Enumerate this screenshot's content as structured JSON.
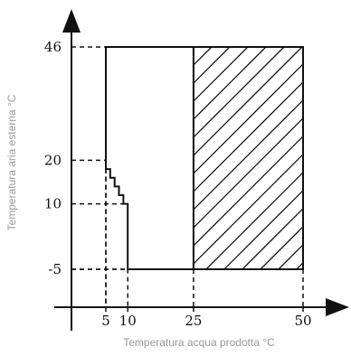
{
  "chart_data": {
    "type": "area",
    "xlabel": "Temperatura acqua prodotta °C",
    "ylabel": "Temperatura aria esterna °C",
    "xlim": [
      -8,
      60
    ],
    "ylim": [
      -13,
      55
    ],
    "x_ticks": [
      {
        "value": 5,
        "label": "5"
      },
      {
        "value": 10,
        "label": "10"
      },
      {
        "value": 25,
        "label": "25"
      },
      {
        "value": 50,
        "label": "50"
      }
    ],
    "y_ticks": [
      {
        "value": 46,
        "label": "46"
      },
      {
        "value": 20,
        "label": "20"
      },
      {
        "value": 10,
        "label": "10"
      },
      {
        "value": -5,
        "label": "-5"
      }
    ],
    "regions": [
      {
        "fill": "none",
        "outline": [
          [
            5,
            46
          ],
          [
            50,
            46
          ],
          [
            50,
            -5
          ],
          [
            10,
            -5
          ],
          [
            10,
            10
          ],
          [
            9,
            10
          ],
          [
            9,
            12
          ],
          [
            8,
            12
          ],
          [
            8,
            14
          ],
          [
            7,
            14
          ],
          [
            7,
            16
          ],
          [
            6,
            16
          ],
          [
            6,
            18
          ],
          [
            5,
            18
          ],
          [
            5,
            46
          ]
        ]
      },
      {
        "fill": "hatched",
        "outline": [
          [
            25,
            46
          ],
          [
            50,
            46
          ],
          [
            50,
            -5
          ],
          [
            25,
            -5
          ]
        ]
      }
    ],
    "reference_lines": [
      {
        "x": 5,
        "y": 20
      },
      {
        "x": 5,
        "y": 46
      },
      {
        "x": 10,
        "y": 10
      },
      {
        "x": 25,
        "y": -5
      },
      {
        "x": 50,
        "y": -5
      }
    ],
    "grid": false,
    "legend": "none"
  },
  "colors": {
    "line": "#111111",
    "axis_title": "#9a9a9a"
  }
}
